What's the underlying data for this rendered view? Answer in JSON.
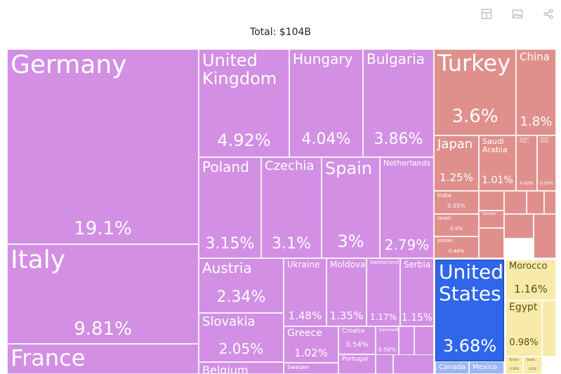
{
  "title": "Total: $104B",
  "toolbar": {
    "icons": [
      "table-icon",
      "image-icon",
      "share-icon"
    ]
  },
  "colors": {
    "Europe": "#d28fe3",
    "Asia": "#df908d",
    "Americas_main": "#2f66ea",
    "Americas_minor": "#9bb6f4",
    "Africa": "#f8eaa8"
  },
  "chart_data": {
    "type": "treemap",
    "title": "Total: $104B",
    "tiles": [
      {
        "label": "Germany",
        "value": "19.1%",
        "group": "Europe"
      },
      {
        "label": "Italy",
        "value": "9.81%",
        "group": "Europe"
      },
      {
        "label": "France",
        "value": "",
        "group": "Europe"
      },
      {
        "label": "United Kingdom",
        "value": "4.92%",
        "group": "Europe"
      },
      {
        "label": "Hungary",
        "value": "4.04%",
        "group": "Europe"
      },
      {
        "label": "Bulgaria",
        "value": "3.86%",
        "group": "Europe"
      },
      {
        "label": "Poland",
        "value": "3.15%",
        "group": "Europe"
      },
      {
        "label": "Czechia",
        "value": "3.1%",
        "group": "Europe"
      },
      {
        "label": "Spain",
        "value": "3%",
        "group": "Europe"
      },
      {
        "label": "Netherlands",
        "value": "2.79%",
        "group": "Europe"
      },
      {
        "label": "Austria",
        "value": "2.34%",
        "group": "Europe"
      },
      {
        "label": "Slovakia",
        "value": "2.05%",
        "group": "Europe"
      },
      {
        "label": "Belgium",
        "value": "",
        "group": "Europe"
      },
      {
        "label": "Ukraine",
        "value": "1.48%",
        "group": "Europe"
      },
      {
        "label": "Moldova",
        "value": "1.35%",
        "group": "Europe"
      },
      {
        "label": "Switzerland",
        "value": "1.17%",
        "group": "Europe"
      },
      {
        "label": "Serbia",
        "value": "1.15%",
        "group": "Europe"
      },
      {
        "label": "Greece",
        "value": "1.02%",
        "group": "Europe"
      },
      {
        "label": "Croatia",
        "value": "0.54%",
        "group": "Europe"
      },
      {
        "label": "Denmark",
        "value": "0.58%",
        "group": "Europe"
      },
      {
        "label": "",
        "value": "",
        "group": "Europe"
      },
      {
        "label": "",
        "value": "",
        "group": "Europe"
      },
      {
        "label": "Sweden",
        "value": "",
        "group": "Europe"
      },
      {
        "label": "Portugal",
        "value": "",
        "group": "Europe"
      },
      {
        "label": "",
        "value": "",
        "group": "Europe"
      },
      {
        "label": "",
        "value": "",
        "group": "Europe"
      },
      {
        "label": "Turkey",
        "value": "3.6%",
        "group": "Asia"
      },
      {
        "label": "China",
        "value": "1.8%",
        "group": "Asia"
      },
      {
        "label": "Japan",
        "value": "1.25%",
        "group": "Asia"
      },
      {
        "label": "Saudi Arabia",
        "value": "1.01%",
        "group": "Asia"
      },
      {
        "label": "United Arab...",
        "value": "0.62%",
        "group": "Asia"
      },
      {
        "label": "South Korea",
        "value": "0.59%",
        "group": "Asia"
      },
      {
        "label": "India",
        "value": "0.55%",
        "group": "Asia"
      },
      {
        "label": "Israel",
        "value": "0.5%",
        "group": "Asia"
      },
      {
        "label": "Jordan",
        "value": "0.48%",
        "group": "Asia"
      },
      {
        "label": "",
        "value": "",
        "group": "Asia"
      },
      {
        "label": "Georgia",
        "value": "",
        "group": "Asia"
      },
      {
        "label": "",
        "value": "",
        "group": "Asia"
      },
      {
        "label": "",
        "value": "",
        "group": "Asia"
      },
      {
        "label": "",
        "value": "",
        "group": "Asia"
      },
      {
        "label": "",
        "value": "",
        "group": "Asia"
      },
      {
        "label": "",
        "value": "",
        "group": "Asia"
      },
      {
        "label": "",
        "value": "",
        "group": "Asia"
      },
      {
        "label": "United States",
        "value": "3.68%",
        "group": "Americas_main"
      },
      {
        "label": "Canada",
        "value": "",
        "group": "Americas_minor"
      },
      {
        "label": "Mexico",
        "value": "",
        "group": "Americas_minor"
      },
      {
        "label": "Morocco",
        "value": "1.16%",
        "group": "Africa"
      },
      {
        "label": "Egypt",
        "value": "0.98%",
        "group": "Africa"
      },
      {
        "label": "",
        "value": "",
        "group": "Africa"
      },
      {
        "label": "Tunisia",
        "value": "0.32%",
        "group": "Africa"
      },
      {
        "label": "South...",
        "value": "0.2%",
        "group": "Africa"
      }
    ]
  }
}
